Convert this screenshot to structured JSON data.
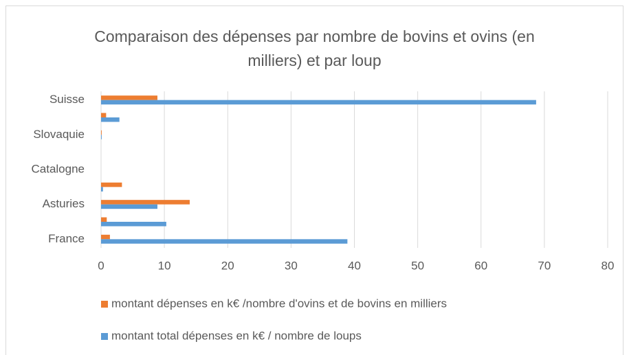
{
  "chart_data": {
    "type": "barh",
    "title": "Comparaison des dépenses par nombre de bovins et ovins (en milliers) et par loup",
    "categories": [
      "France",
      null,
      "Asturies",
      null,
      "Catalogne",
      null,
      "Slovaquie",
      null,
      "Suisse"
    ],
    "series": [
      {
        "name": "montant dépenses en k€ /nombre d'ovins et de bovins en milliers",
        "color": "#ed7d31",
        "values": [
          1.4,
          0.9,
          14.0,
          3.3,
          0,
          null,
          0.1,
          0.8,
          8.9
        ]
      },
      {
        "name": "montant total dépenses en k€ / nombre de loups",
        "color": "#5b9bd5",
        "values": [
          38.9,
          10.3,
          8.9,
          0.3,
          0,
          null,
          0.1,
          2.9,
          68.7
        ]
      }
    ],
    "xlim": [
      0,
      80
    ],
    "xticks": [
      0,
      10,
      20,
      30,
      40,
      50,
      60,
      70,
      80
    ],
    "grid": true
  }
}
